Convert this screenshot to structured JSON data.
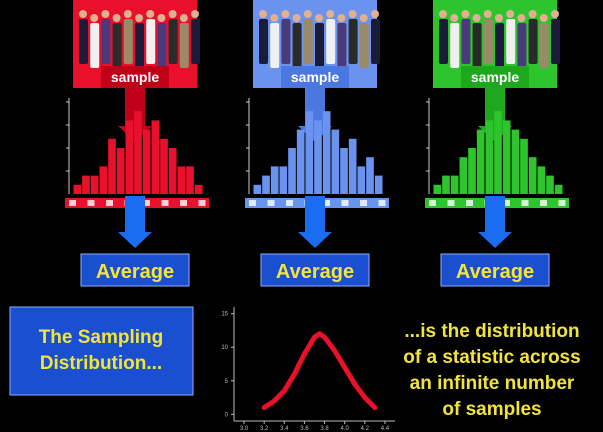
{
  "panels": [
    {
      "color": "#e8102a",
      "sample_label": "sample",
      "histogram": {
        "type": "bar",
        "values": [
          1,
          2,
          2,
          3,
          6,
          5,
          8,
          9,
          7,
          8,
          6,
          5,
          3,
          3,
          1
        ],
        "ylim": [
          0,
          10
        ]
      },
      "result_label": "Average"
    },
    {
      "color": "#6a93f0",
      "sample_label": "sample",
      "histogram": {
        "type": "bar",
        "values": [
          1,
          2,
          3,
          3,
          5,
          7,
          9,
          8,
          9,
          7,
          5,
          6,
          3,
          4,
          2
        ],
        "ylim": [
          0,
          10
        ]
      },
      "result_label": "Average"
    },
    {
      "color": "#2ec42e",
      "sample_label": "sample",
      "histogram": {
        "type": "bar",
        "values": [
          1,
          2,
          2,
          4,
          5,
          7,
          8,
          9,
          8,
          7,
          6,
          4,
          3,
          2,
          1
        ],
        "ylim": [
          0,
          10
        ]
      },
      "result_label": "Average"
    }
  ],
  "left_box": {
    "lines": [
      "The Sampling",
      "Distribution..."
    ]
  },
  "curve_chart": {
    "type": "line",
    "color": "#e8102a",
    "x": [
      3.2,
      3.3,
      3.4,
      3.5,
      3.6,
      3.7,
      3.75,
      3.8,
      3.9,
      4.0,
      4.1,
      4.2,
      4.3
    ],
    "values": [
      1,
      2,
      3.5,
      6,
      9,
      11.5,
      12,
      11.5,
      9.5,
      7,
      4.5,
      2.5,
      1
    ],
    "xlim": [
      2.9,
      4.5
    ],
    "ylim": [
      -1,
      16
    ],
    "xticks": [
      {
        "value": 3,
        "label": "3.0"
      },
      3.2,
      3.4,
      3.6,
      3.8,
      {
        "value": 4,
        "label": "4.0"
      },
      4.2,
      4.4
    ],
    "yticks": [
      0,
      5,
      10,
      15
    ]
  },
  "right_text": {
    "lines": [
      "...is the distribution",
      "of a statistic across",
      "an infinite number",
      "of samples"
    ]
  }
}
